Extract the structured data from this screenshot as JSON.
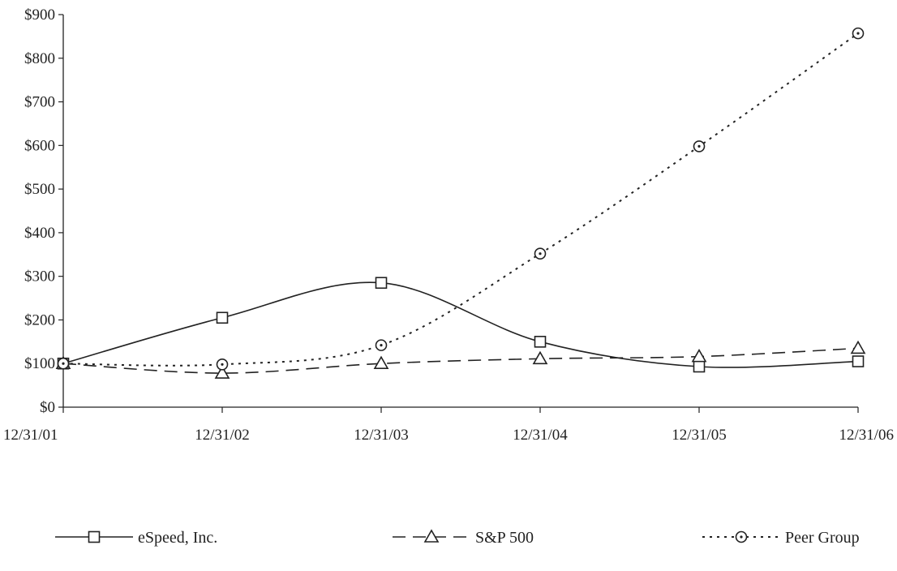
{
  "chart_data": {
    "type": "line",
    "title": "",
    "xlabel": "",
    "ylabel": "",
    "categories": [
      "12/31/01",
      "12/31/02",
      "12/31/03",
      "12/31/04",
      "12/31/05",
      "12/31/06"
    ],
    "y_tick_labels": [
      "$0",
      "$100",
      "$200",
      "$300",
      "$400",
      "$500",
      "$600",
      "$700",
      "$800",
      "$900"
    ],
    "ylim": [
      0,
      900
    ],
    "grid": false,
    "legend_position": "bottom",
    "series": [
      {
        "name": "eSpeed, Inc.",
        "marker": "square",
        "line_style": "solid",
        "values": [
          100,
          205,
          285,
          150,
          93,
          105
        ]
      },
      {
        "name": "S&P 500",
        "marker": "triangle",
        "line_style": "dashed",
        "values": [
          100,
          78,
          100,
          111,
          116,
          135
        ]
      },
      {
        "name": "Peer Group",
        "marker": "circle",
        "line_style": "dotted",
        "values": [
          100,
          98,
          142,
          352,
          598,
          857
        ]
      }
    ],
    "colors": {
      "line": "#222222",
      "background": "#ffffff"
    }
  }
}
